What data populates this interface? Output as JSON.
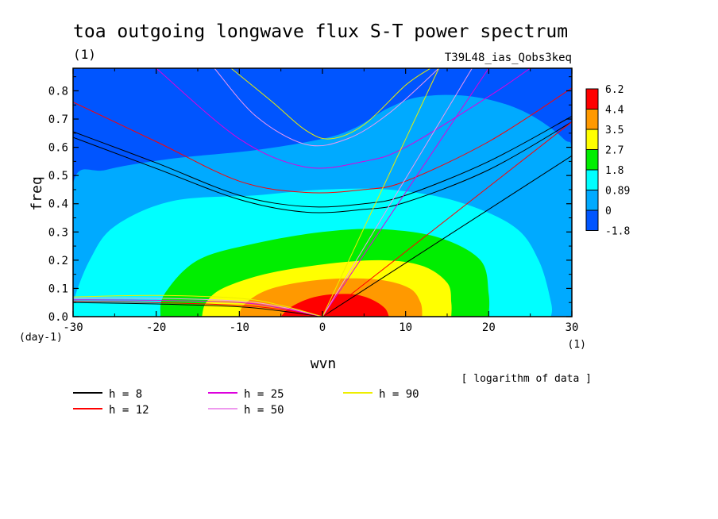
{
  "chart_data": {
    "type": "heatmap",
    "title": "toa outgoing longwave flux S-T power spectrum",
    "title_units": "(1)",
    "subtitle": "T39L48_ias_Qobs3keq",
    "xlabel": "wvn",
    "x_units": "(1)",
    "ylabel": "freq",
    "y_units": "(day-1)",
    "xlim": [
      -30,
      30
    ],
    "ylim": [
      0,
      0.88
    ],
    "x_ticks": [
      -30,
      -20,
      -10,
      0,
      10,
      20,
      30
    ],
    "x_tick_labels": [
      "-30",
      "-20",
      "-10",
      "0",
      "10",
      "20",
      "30"
    ],
    "y_ticks": [
      0,
      0.1,
      0.2,
      0.3,
      0.4,
      0.5,
      0.6,
      0.7,
      0.8
    ],
    "y_tick_labels": [
      "0.0",
      "0.1",
      "0.2",
      "0.3",
      "0.4",
      "0.5",
      "0.6",
      "0.7",
      "0.8"
    ],
    "colorbar": {
      "levels": [
        "6.2",
        "4.4",
        "3.5",
        "2.7",
        "1.8",
        "0.89",
        "0",
        "-1.8"
      ],
      "colors": [
        "#ff0000",
        "#ff9900",
        "#ffff00",
        "#00ee00",
        "#00ffff",
        "#00aaff",
        "#0055ff"
      ],
      "note": "[ logarithm of data ]"
    },
    "contour_fills": [
      {
        "level": 6.2,
        "color": "#ff0000",
        "points": [
          [
            -5,
            0
          ],
          [
            -4,
            0.03
          ],
          [
            -2,
            0.06
          ],
          [
            0,
            0.075
          ],
          [
            2,
            0.08
          ],
          [
            4,
            0.078
          ],
          [
            6,
            0.06
          ],
          [
            7.5,
            0.03
          ],
          [
            8,
            0
          ]
        ]
      },
      {
        "level": 4.4,
        "color": "#ff9900",
        "points": [
          [
            -10,
            0
          ],
          [
            -9.5,
            0.04
          ],
          [
            -7,
            0.09
          ],
          [
            -3,
            0.12
          ],
          [
            2,
            0.135
          ],
          [
            7,
            0.13
          ],
          [
            10.5,
            0.1
          ],
          [
            11.8,
            0.05
          ],
          [
            12,
            0
          ]
        ]
      },
      {
        "level": 3.5,
        "color": "#ffff00",
        "points": [
          [
            -14.5,
            0
          ],
          [
            -14,
            0.05
          ],
          [
            -12,
            0.1
          ],
          [
            -7,
            0.15
          ],
          [
            0,
            0.185
          ],
          [
            7,
            0.2
          ],
          [
            12,
            0.18
          ],
          [
            15,
            0.12
          ],
          [
            15.5,
            0.05
          ],
          [
            15.5,
            0
          ]
        ]
      },
      {
        "level": 2.7,
        "color": "#00ee00",
        "points": [
          [
            -19.5,
            0
          ],
          [
            -19,
            0.08
          ],
          [
            -15,
            0.2
          ],
          [
            -8,
            0.26
          ],
          [
            0,
            0.3
          ],
          [
            7,
            0.31
          ],
          [
            14,
            0.28
          ],
          [
            19,
            0.2
          ],
          [
            20,
            0.08
          ],
          [
            20,
            0
          ]
        ]
      },
      {
        "level": 1.8,
        "color": "#00ffff",
        "points": [
          [
            -30,
            0
          ],
          [
            -30,
            0.05
          ],
          [
            -28,
            0.2
          ],
          [
            -25,
            0.32
          ],
          [
            -18,
            0.41
          ],
          [
            -8,
            0.43
          ],
          [
            0,
            0.45
          ],
          [
            8,
            0.45
          ],
          [
            16,
            0.41
          ],
          [
            23,
            0.32
          ],
          [
            26,
            0.2
          ],
          [
            27.5,
            0.05
          ],
          [
            27.5,
            0
          ]
        ]
      },
      {
        "level": 0.89,
        "color": "#00aaff",
        "points": [
          [
            -30,
            0
          ],
          [
            -30,
            0.47
          ],
          [
            -26,
            0.52
          ],
          [
            -18,
            0.56
          ],
          [
            -8,
            0.59
          ],
          [
            0,
            0.63
          ],
          [
            4,
            0.67
          ],
          [
            8,
            0.74
          ],
          [
            12,
            0.78
          ],
          [
            18,
            0.78
          ],
          [
            24,
            0.73
          ],
          [
            29,
            0.63
          ],
          [
            30,
            0.55
          ],
          [
            30,
            0
          ]
        ]
      }
    ],
    "background_color": "#0055ff",
    "dispersion_curves": [
      {
        "name": "h =  8",
        "color": "#000000",
        "mrg": [
          [
            -30,
            0.635
          ],
          [
            -20,
            0.525
          ],
          [
            -10,
            0.415
          ],
          [
            -2,
            0.37
          ],
          [
            5,
            0.38
          ],
          [
            10,
            0.405
          ],
          [
            20,
            0.52
          ],
          [
            30,
            0.69
          ]
        ],
        "ig": [
          [
            -30,
            0.655
          ],
          [
            -20,
            0.545
          ],
          [
            -10,
            0.43
          ],
          [
            -2,
            0.39
          ],
          [
            5,
            0.4
          ],
          [
            10,
            0.43
          ],
          [
            20,
            0.55
          ],
          [
            30,
            0.71
          ]
        ],
        "kelvin": [
          [
            0,
            0
          ],
          [
            30,
            0.57
          ]
        ],
        "er": [
          [
            -30,
            0.05
          ],
          [
            -20,
            0.045
          ],
          [
            -10,
            0.035
          ],
          [
            -5,
            0.02
          ],
          [
            0,
            0
          ]
        ]
      },
      {
        "name": "h = 12",
        "color": "#ff0000",
        "mrg": [
          [
            -30,
            0.76
          ],
          [
            -20,
            0.62
          ],
          [
            -10,
            0.48
          ],
          [
            -2,
            0.44
          ],
          [
            5,
            0.45
          ],
          [
            10,
            0.48
          ],
          [
            20,
            0.62
          ],
          [
            30,
            0.81
          ]
        ],
        "kelvin": [
          [
            0,
            0
          ],
          [
            30,
            0.69
          ]
        ],
        "er": [
          [
            -30,
            0.055
          ],
          [
            -20,
            0.05
          ],
          [
            -10,
            0.04
          ],
          [
            -5,
            0.025
          ],
          [
            0,
            0
          ]
        ]
      },
      {
        "name": "h = 25",
        "color": "#dd00dd",
        "mrg": [
          [
            -20,
            0.88
          ],
          [
            -10,
            0.63
          ],
          [
            -2,
            0.53
          ],
          [
            5,
            0.55
          ],
          [
            10,
            0.6
          ],
          [
            20,
            0.78
          ],
          [
            25,
            0.88
          ]
        ],
        "kelvin": [
          [
            0,
            0
          ],
          [
            20,
            0.88
          ]
        ],
        "er": [
          [
            -30,
            0.06
          ],
          [
            -20,
            0.058
          ],
          [
            -10,
            0.05
          ],
          [
            -5,
            0.03
          ],
          [
            0,
            0
          ]
        ]
      },
      {
        "name": "h = 50",
        "color": "#ee99ee",
        "mrg": [
          [
            -13,
            0.88
          ],
          [
            -8,
            0.71
          ],
          [
            -2,
            0.61
          ],
          [
            3,
            0.63
          ],
          [
            8,
            0.72
          ],
          [
            14,
            0.88
          ]
        ],
        "kelvin": [
          [
            0,
            0
          ],
          [
            18,
            0.88
          ]
        ],
        "er": [
          [
            -30,
            0.065
          ],
          [
            -20,
            0.065
          ],
          [
            -10,
            0.055
          ],
          [
            -5,
            0.035
          ],
          [
            0,
            0
          ]
        ]
      },
      {
        "name": "h = 90",
        "color": "#eeee00",
        "mrg": [
          [
            -11,
            0.88
          ],
          [
            -6,
            0.76
          ],
          [
            -2,
            0.66
          ],
          [
            1,
            0.63
          ],
          [
            5,
            0.68
          ],
          [
            10,
            0.82
          ],
          [
            13,
            0.88
          ]
        ],
        "kelvin": [
          [
            0,
            0
          ],
          [
            14,
            0.88
          ]
        ],
        "er": [
          [
            -30,
            0.07
          ],
          [
            -20,
            0.075
          ],
          [
            -10,
            0.065
          ],
          [
            -5,
            0.04
          ],
          [
            0,
            0
          ]
        ]
      }
    ],
    "legend": [
      {
        "label": "h =  8",
        "color": "#000000"
      },
      {
        "label": "h = 12",
        "color": "#ff0000"
      },
      {
        "label": "h = 25",
        "color": "#dd00dd"
      },
      {
        "label": "h = 50",
        "color": "#ee99ee"
      },
      {
        "label": "h = 90",
        "color": "#eeee00"
      }
    ]
  }
}
